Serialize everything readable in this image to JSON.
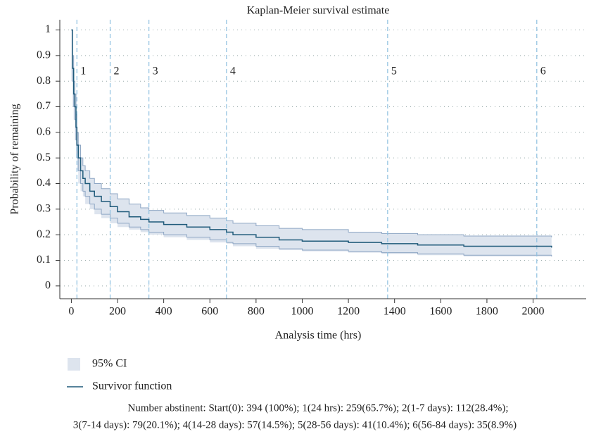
{
  "chart_data": {
    "type": "step",
    "title": "Kaplan-Meier survival estimate",
    "x_label": "Analysis time (hrs)",
    "y_label": "Probability of remaining",
    "x": [
      0,
      5,
      10,
      15,
      20,
      24,
      30,
      40,
      50,
      60,
      80,
      100,
      130,
      168,
      200,
      250,
      300,
      336,
      400,
      500,
      600,
      672,
      700,
      800,
      900,
      1000,
      1200,
      1344,
      1500,
      1700,
      2080
    ],
    "series": [
      {
        "name": "Survivor function",
        "color": "#1f5a7a",
        "values": [
          1,
          0.85,
          0.75,
          0.7,
          0.62,
          0.55,
          0.5,
          0.45,
          0.42,
          0.4,
          0.37,
          0.35,
          0.33,
          0.31,
          0.29,
          0.27,
          0.26,
          0.25,
          0.24,
          0.23,
          0.22,
          0.21,
          0.2,
          0.19,
          0.18,
          0.175,
          0.17,
          0.165,
          0.16,
          0.155,
          0.15
        ]
      }
    ],
    "ci": {
      "name": "95% CI",
      "color": "#dde4ee",
      "edge": "#8ea6c4",
      "lower": [
        1,
        0.8,
        0.7,
        0.65,
        0.57,
        0.5,
        0.45,
        0.4,
        0.37,
        0.35,
        0.32,
        0.3,
        0.28,
        0.265,
        0.245,
        0.23,
        0.22,
        0.21,
        0.2,
        0.19,
        0.18,
        0.17,
        0.165,
        0.155,
        0.145,
        0.14,
        0.135,
        0.13,
        0.125,
        0.12,
        0.115
      ],
      "upper": [
        1,
        0.9,
        0.8,
        0.75,
        0.67,
        0.6,
        0.55,
        0.5,
        0.47,
        0.45,
        0.42,
        0.4,
        0.38,
        0.36,
        0.34,
        0.32,
        0.305,
        0.295,
        0.285,
        0.275,
        0.265,
        0.255,
        0.245,
        0.235,
        0.225,
        0.22,
        0.21,
        0.205,
        0.2,
        0.195,
        0.19
      ]
    },
    "reference_lines": {
      "color": "#8ec0e0",
      "x": [
        24,
        168,
        336,
        672,
        1370,
        2016
      ],
      "labels": [
        "1",
        "2",
        "3",
        "4",
        "5",
        "6"
      ]
    },
    "xlim": [
      -50,
      2230
    ],
    "ylim": [
      -0.05,
      1.04
    ],
    "xticks": [
      0,
      200,
      400,
      600,
      800,
      1000,
      1200,
      1400,
      1600,
      1800,
      2000
    ],
    "yticks": [
      0,
      0.1,
      0.2,
      0.3,
      0.4,
      0.5,
      0.6,
      0.7,
      0.8,
      0.9,
      1
    ],
    "grid": true,
    "footnote": [
      "Number abstinent: Start(0): 394 (100%); 1(24 hrs): 259(65.7%); 2(1-7 days): 112(28.4%);",
      "3(7-14 days): 79(20.1%); 4(14-28 days): 57(14.5%); 5(28-56 days): 41(10.4%); 6(56-84 days): 35(8.9%)"
    ]
  }
}
